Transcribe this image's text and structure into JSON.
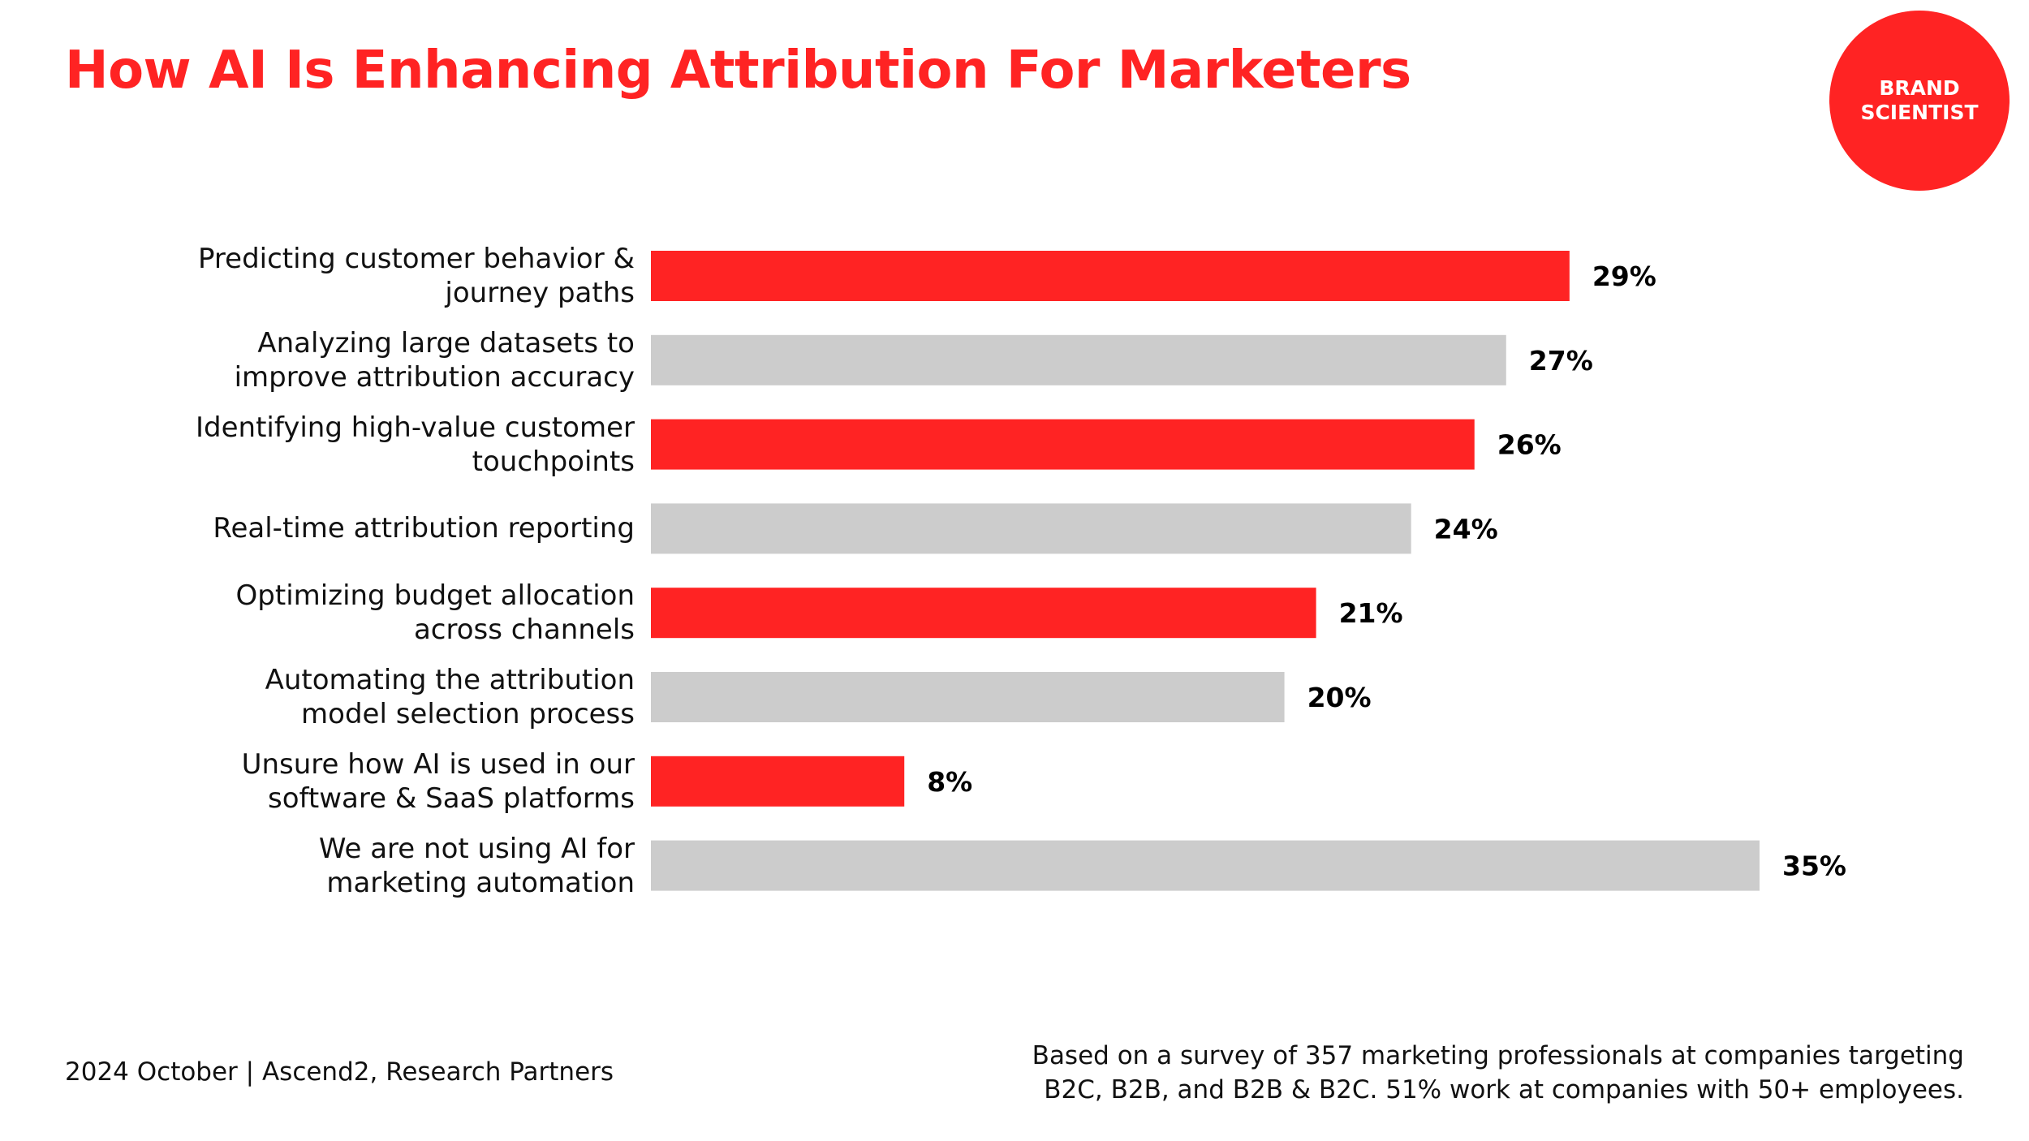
{
  "header": {
    "title": "How AI Is Enhancing Attribution For Marketers"
  },
  "logo": {
    "text": "BRAND\nSCIENTIST"
  },
  "footer": {
    "source": "2024 October  |  Ascend2, Research Partners",
    "note": "Based on a survey of 357 marketing professionals at companies targeting\nB2C, B2B, and B2B & B2C. 51% work at companies with 50+ employees."
  },
  "colors": {
    "accent": "#ff2323",
    "muted": "#cccccc",
    "text": "#111111",
    "value": "#000000"
  },
  "chart_data": {
    "type": "bar",
    "orientation": "horizontal",
    "title": "How AI Is Enhancing Attribution For Marketers",
    "xlabel": "",
    "ylabel": "",
    "xlim": [
      0,
      35
    ],
    "grid": false,
    "categories": [
      "Predicting customer behavior &\njourney paths",
      "Analyzing large datasets to\nimprove attribution accuracy",
      "Identifying high-value customer\ntouchpoints",
      "Real-time attribution reporting",
      "Optimizing budget allocation\nacross channels",
      "Automating the attribution\nmodel selection process",
      "Unsure how AI is used in our\nsoftware & SaaS platforms",
      "We are not using AI for\nmarketing automation"
    ],
    "values": [
      29,
      27,
      26,
      24,
      21,
      20,
      8,
      35
    ],
    "value_labels": [
      "29%",
      "27%",
      "26%",
      "24%",
      "21%",
      "20%",
      "8%",
      "35%"
    ],
    "bar_colors": [
      "#ff2323",
      "#cccccc",
      "#ff2323",
      "#cccccc",
      "#ff2323",
      "#cccccc",
      "#ff2323",
      "#cccccc"
    ]
  }
}
